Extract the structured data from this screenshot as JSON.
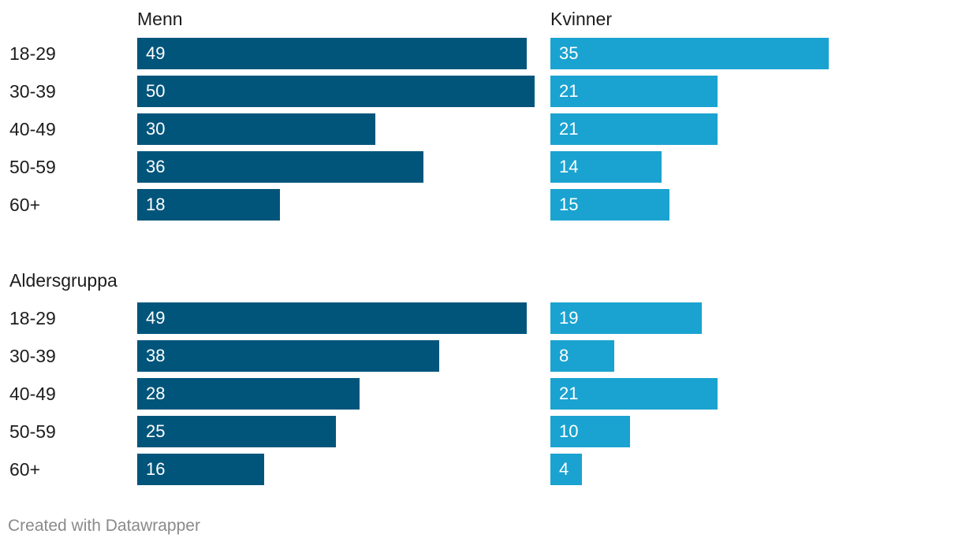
{
  "chart_data": [
    {
      "type": "bar",
      "title": "",
      "group_label": "",
      "categories": [
        "18-29",
        "30-39",
        "40-49",
        "50-59",
        "60+"
      ],
      "series": [
        {
          "name": "Menn",
          "values": [
            49,
            50,
            30,
            36,
            18
          ]
        },
        {
          "name": "Kvinner",
          "values": [
            35,
            21,
            21,
            14,
            15
          ]
        }
      ]
    },
    {
      "type": "bar",
      "title": "",
      "group_label": "Aldersgruppa",
      "categories": [
        "18-29",
        "30-39",
        "40-49",
        "50-59",
        "60+"
      ],
      "series": [
        {
          "name": "Menn",
          "values": [
            49,
            38,
            28,
            25,
            16
          ]
        },
        {
          "name": "Kvinner",
          "values": [
            19,
            8,
            21,
            10,
            4
          ]
        }
      ]
    }
  ],
  "colors": {
    "menn": "#01557b",
    "kvinner": "#1aa3d0"
  },
  "footer": "Created with Datawrapper"
}
